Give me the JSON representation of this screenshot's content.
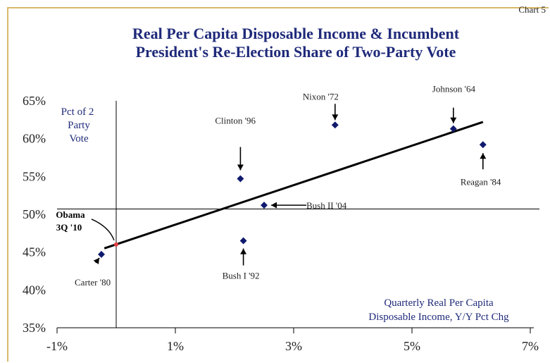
{
  "corner_label": "Chart 5",
  "chart_data": {
    "type": "scatter",
    "title_line1": "Real Per Capita Disposable Income & Incumbent",
    "title_line2": "President's Re-Election Share of Two-Party Vote",
    "ylabel_lines": [
      "Pct of 2",
      "Party",
      "Vote"
    ],
    "xlabel_lines": [
      "Quarterly Real Per Capita",
      "Disposable Income, Y/Y Pct Chg"
    ],
    "xlim": [
      -1,
      7
    ],
    "ylim": [
      35,
      65
    ],
    "x_ticks": [
      -1,
      1,
      3,
      5,
      7
    ],
    "x_tick_labels": [
      "-1%",
      "1%",
      "3%",
      "5%",
      "7%"
    ],
    "y_ticks": [
      35,
      40,
      45,
      50,
      55,
      60,
      65
    ],
    "y_tick_labels": [
      "35%",
      "40%",
      "45%",
      "50%",
      "55%",
      "60%",
      "65%"
    ],
    "colors": {
      "title": "#1f2a7a",
      "points": "#0f1a6e",
      "axis_text": "#222222",
      "fit_line": "#000000",
      "obama_marker": "#e04040",
      "frame": "#d8b96a"
    },
    "points": [
      {
        "label": "Carter '80",
        "x": -0.25,
        "y": 44.7
      },
      {
        "label": "Bush I '92",
        "x": 2.15,
        "y": 46.5
      },
      {
        "label": "Bush II '04",
        "x": 2.5,
        "y": 51.2
      },
      {
        "label": "Clinton '96",
        "x": 2.1,
        "y": 54.7
      },
      {
        "label": "Nixon '72",
        "x": 3.7,
        "y": 61.8
      },
      {
        "label": "Johnson '64",
        "x": 5.7,
        "y": 61.3
      },
      {
        "label": "Reagan '84",
        "x": 6.2,
        "y": 59.2
      }
    ],
    "fit_line": {
      "x": [
        -0.2,
        6.2
      ],
      "y": [
        45.5,
        62.2
      ]
    },
    "reference_lines": {
      "horizontal_y": 50.7,
      "vertical_x": 0
    },
    "obama": {
      "label_lines": [
        "Obama",
        "3Q '10"
      ],
      "x": 0.0,
      "y": 46.0
    }
  }
}
